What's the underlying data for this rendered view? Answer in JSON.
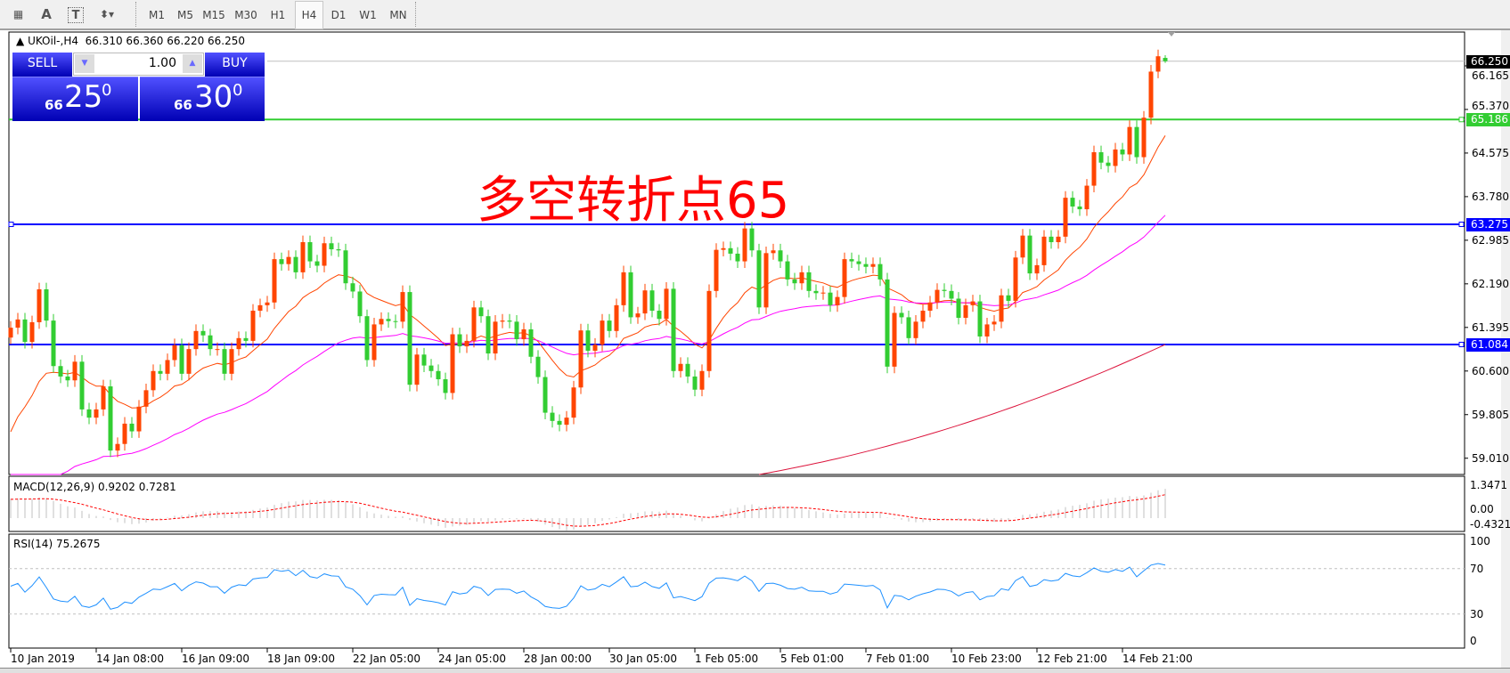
{
  "toolbar": {
    "icons": [
      "grid-icon",
      "text-A-icon",
      "text-label-T-icon",
      "arrows-icon"
    ],
    "timeframes": [
      "M1",
      "M5",
      "M15",
      "M30",
      "H1",
      "H4",
      "D1",
      "W1",
      "MN"
    ],
    "active_timeframe": "H4"
  },
  "chart": {
    "symbol": "UKOil-,H4",
    "ohlc": "66.310 66.360 66.220 66.250"
  },
  "trade_panel": {
    "sell_label": "SELL",
    "buy_label": "BUY",
    "lot": "1.00",
    "sell_price": {
      "prefix": "66",
      "main": "25",
      "sup": "0"
    },
    "buy_price": {
      "prefix": "66",
      "main": "30",
      "sup": "0"
    }
  },
  "annotation": "多空转折点65",
  "price_axis": {
    "ticks": [
      "66.165",
      "65.370",
      "64.575",
      "63.780",
      "62.985",
      "62.190",
      "61.395",
      "60.600",
      "59.805",
      "59.010"
    ],
    "markers": [
      {
        "value": "66.250",
        "color": "#000000"
      },
      {
        "value": "65.186",
        "color": "#32cd32"
      },
      {
        "value": "63.275",
        "color": "#0000ff"
      },
      {
        "value": "61.084",
        "color": "#0000ff"
      }
    ]
  },
  "macd": {
    "label": "MACD(12,26,9) 0.9202 0.7281",
    "axis_max": "1.3471",
    "axis_zero": "0.00",
    "axis_min": "-0.4321"
  },
  "rsi": {
    "label": "RSI(14) 75.2675",
    "axis": [
      "100",
      "70",
      "30",
      "0"
    ]
  },
  "time_axis": [
    "10 Jan 2019",
    "14 Jan 08:00",
    "16 Jan 09:00",
    "18 Jan 09:00",
    "22 Jan 05:00",
    "24 Jan 05:00",
    "28 Jan 00:00",
    "30 Jan 05:00",
    "1 Feb 05:00",
    "5 Feb 01:00",
    "7 Feb 01:00",
    "10 Feb 23:00",
    "12 Feb 21:00",
    "14 Feb 21:00"
  ],
  "chart_data": {
    "type": "candlestick",
    "up_color": "#ff4500",
    "down_color": "#32cd32",
    "first_open": 61.21,
    "closes": [
      61.39,
      61.54,
      61.13,
      61.49,
      62.09,
      61.52,
      60.69,
      60.5,
      60.43,
      60.77,
      59.9,
      59.75,
      59.9,
      60.32,
      59.15,
      59.27,
      59.64,
      59.5,
      59.95,
      60.25,
      60.6,
      60.55,
      60.8,
      61.07,
      60.55,
      61.0,
      61.33,
      61.25,
      61.0,
      61.0,
      60.55,
      61.0,
      61.2,
      61.15,
      61.7,
      61.8,
      61.85,
      62.64,
      62.55,
      62.68,
      62.4,
      62.95,
      62.6,
      62.52,
      62.93,
      62.82,
      62.8,
      62.2,
      62.05,
      61.6,
      60.8,
      61.45,
      61.55,
      61.51,
      61.5,
      62.04,
      60.35,
      60.9,
      60.7,
      60.6,
      60.45,
      60.2,
      61.27,
      61.05,
      61.15,
      61.76,
      61.6,
      60.92,
      61.5,
      61.52,
      61.5,
      61.18,
      61.36,
      60.86,
      60.49,
      59.84,
      59.69,
      59.62,
      59.75,
      60.3,
      61.34,
      60.97,
      61.08,
      61.52,
      61.33,
      61.8,
      62.4,
      61.58,
      61.65,
      62.07,
      61.7,
      61.55,
      62.1,
      60.6,
      60.73,
      60.5,
      60.26,
      60.6,
      62.06,
      62.81,
      62.84,
      62.74,
      62.6,
      63.2,
      62.8,
      61.76,
      62.75,
      62.8,
      62.6,
      62.27,
      62.2,
      62.4,
      62.06,
      62.02,
      62.03,
      61.8,
      61.95,
      62.64,
      62.6,
      62.55,
      62.5,
      62.55,
      62.27,
      60.68,
      61.66,
      61.58,
      61.2,
      61.5,
      61.7,
      61.85,
      62.08,
      62.06,
      61.92,
      61.57,
      61.8,
      61.87,
      61.23,
      61.45,
      61.5,
      61.98,
      61.88,
      62.67,
      63.07,
      62.38,
      62.53,
      63.05,
      62.95,
      63.05,
      63.76,
      63.6,
      63.55,
      63.98,
      64.59,
      64.4,
      64.34,
      64.64,
      64.55,
      65.05,
      64.5,
      65.22,
      66.06,
      66.34,
      66.25
    ],
    "last_bar": {
      "open": 66.31,
      "high": 66.36,
      "low": 66.22,
      "close": 66.25
    },
    "horizontal_lines": [
      {
        "value": 65.186,
        "color": "#32cd32"
      },
      {
        "value": 63.275,
        "color": "#0000ff"
      },
      {
        "value": 61.084,
        "color": "#0000ff"
      }
    ],
    "moving_average_colors": [
      "#ff4500",
      "#ff00ff",
      "#dc143c"
    ],
    "y_range": [
      58.7,
      66.6
    ],
    "rsi_levels": [
      70,
      30
    ]
  }
}
